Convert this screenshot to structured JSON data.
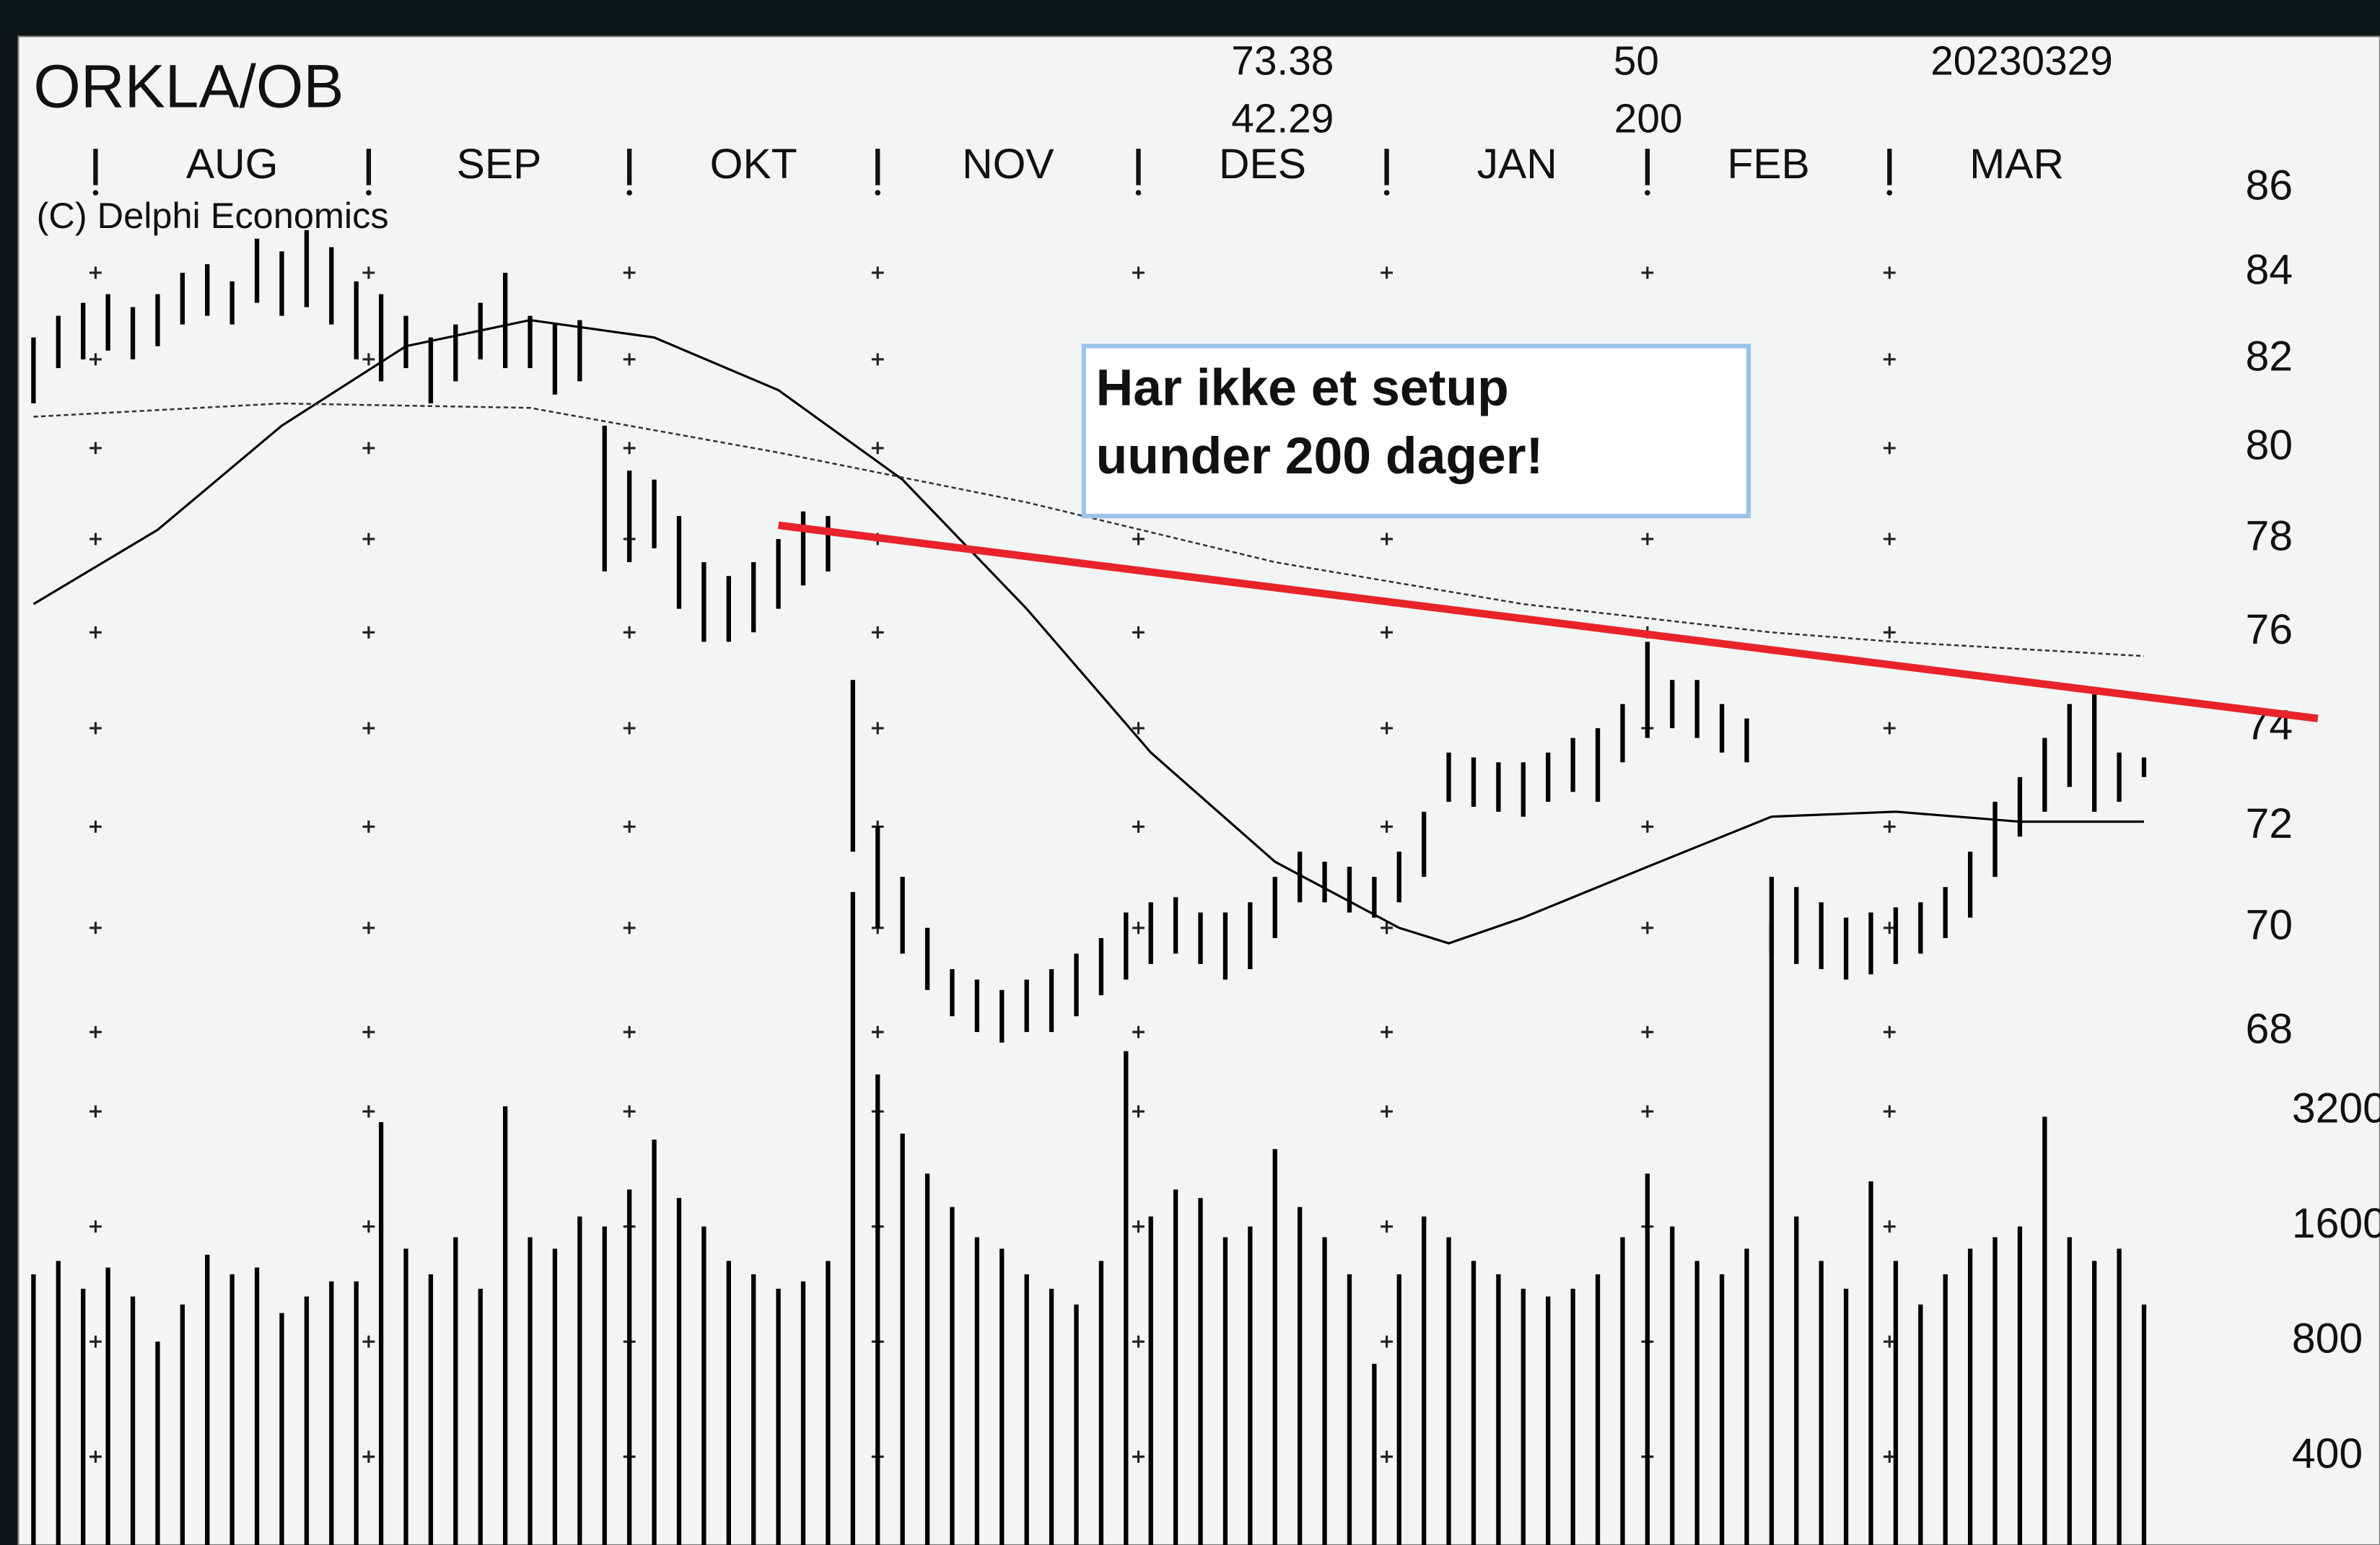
{
  "chart_data": {
    "type": "stock",
    "title": "ORKLA/OB",
    "copyright": "(C) Delphi Economics",
    "stats": [
      73.38,
      42.29
    ],
    "ma_periods": [
      50,
      200
    ],
    "date": "20230329",
    "annotation": [
      "Har ikke et setup",
      "uunder 200 dager!"
    ],
    "xlim": [
      0,
      189
    ],
    "xticks": [
      {
        "value": 5,
        "label": "AUG"
      },
      {
        "value": 27,
        "label": "SEP"
      },
      {
        "value": 48,
        "label": "OKT"
      },
      {
        "value": 68,
        "label": "NOV"
      },
      {
        "value": 89,
        "label": "DES"
      },
      {
        "value": 109,
        "label": "JAN"
      },
      {
        "value": 130,
        "label": "FEB"
      },
      {
        "value": 149.5,
        "label": "MAR"
      }
    ],
    "x": [
      0,
      2,
      4,
      6,
      8,
      10,
      12,
      14,
      16,
      18,
      20,
      22,
      24,
      26,
      28,
      30,
      32,
      34,
      36,
      38,
      40,
      42,
      44,
      46,
      48,
      50,
      52,
      54,
      56,
      58,
      60,
      62,
      64,
      66,
      68,
      70,
      72,
      74,
      76,
      78,
      80,
      82,
      84,
      86,
      88,
      90,
      92,
      94,
      96,
      98,
      100,
      102,
      104,
      106,
      108,
      110,
      112,
      114,
      116,
      118,
      120,
      122,
      124,
      126,
      128,
      130,
      132,
      134,
      136,
      138,
      140,
      142,
      144,
      146,
      148,
      150,
      152,
      154,
      156,
      158,
      160,
      162,
      164,
      166,
      168,
      170
    ],
    "high": [
      82.5,
      83,
      83.3,
      83.5,
      83.2,
      83.5,
      84,
      84.2,
      83.8,
      84.8,
      84.5,
      85,
      84.6,
      83.8,
      83.5,
      83,
      82.5,
      82.8,
      83.3,
      84,
      83,
      82.8,
      82.9,
      80.5,
      79.5,
      79.3,
      78.5,
      77.5,
      77.2,
      77.5,
      78,
      78.6,
      78.5,
      75,
      72,
      71,
      70,
      69.2,
      69,
      68.8,
      69,
      69.2,
      69.5,
      69.8,
      70.3,
      70.5,
      70.6,
      70.3,
      70.3,
      70.5,
      71,
      71.5,
      71.3,
      71.2,
      71,
      71.5,
      72.3,
      73.5,
      73.4,
      73.3,
      73.3,
      73.5,
      73.8,
      74,
      74.5,
      75.8,
      75,
      75,
      74.5,
      74.2,
      71,
      70.8,
      70.5,
      70.2,
      70.3,
      70.4,
      70.5,
      70.8,
      71.5,
      72.5,
      73,
      73.8,
      74.5,
      74.7,
      73.5,
      73.4
    ],
    "low": [
      81,
      81.8,
      82,
      82.2,
      82,
      82.3,
      82.8,
      83,
      82.8,
      83.3,
      83,
      83.2,
      82.8,
      82,
      81.5,
      81.8,
      81,
      81.5,
      82,
      81.8,
      81.8,
      81.2,
      81.5,
      77.3,
      77.5,
      77.8,
      76.5,
      75.8,
      75.8,
      76,
      76.5,
      77,
      77.3,
      71.5,
      70,
      69.5,
      68.8,
      68.3,
      68,
      67.8,
      68,
      68,
      68.3,
      68.7,
      69,
      69.3,
      69.5,
      69.3,
      69,
      69.2,
      69.8,
      70.5,
      70.5,
      70.3,
      70.2,
      70.5,
      71,
      72.5,
      72.4,
      72.3,
      72.2,
      72.5,
      72.7,
      72.5,
      73.3,
      73.8,
      74,
      73.8,
      73.5,
      73.3,
      69.5,
      69.3,
      69.2,
      69,
      69.1,
      69.3,
      69.5,
      69.8,
      70.2,
      71,
      71.8,
      72.3,
      72.8,
      72.3,
      72.5,
      73
    ],
    "color": "#000000",
    "ylim": [
      68,
      86
    ],
    "yticks": [
      68,
      70,
      72,
      74,
      76,
      78,
      80,
      82,
      84,
      86
    ],
    "log_y": true,
    "moving_averages": [
      {
        "x": [
          0,
          10,
          20,
          30,
          40,
          50,
          60,
          70,
          80,
          90,
          100,
          110,
          114,
          120,
          130,
          140,
          150,
          160,
          170
        ],
        "values": [
          76.6,
          78.2,
          80.5,
          82.3,
          82.9,
          82.5,
          81.3,
          79.3,
          76.5,
          73.5,
          71.3,
          70,
          69.7,
          70.2,
          71.2,
          72.2,
          72.3,
          72.1,
          72.1
        ],
        "color": "#000000",
        "dashed": false
      },
      {
        "x": [
          0,
          20,
          40,
          60,
          80,
          100,
          120,
          140,
          150,
          170
        ],
        "values": [
          80.7,
          81,
          80.9,
          79.9,
          78.8,
          77.5,
          76.6,
          76,
          75.8,
          75.5
        ],
        "color": "#333333",
        "dashed": true
      }
    ],
    "trendline": {
      "x": [
        60,
        184
      ],
      "values": [
        78.3,
        74.2
      ],
      "color": "#e8232a"
    },
    "volume": {
      "values": [
        1200,
        1300,
        1100,
        1250,
        1050,
        800,
        1000,
        1350,
        1200,
        1250,
        950,
        1050,
        1150,
        1150,
        3000,
        1400,
        1200,
        1500,
        1100,
        3300,
        1500,
        1400,
        1700,
        1600,
        2000,
        2700,
        1900,
        1600,
        1300,
        1200,
        1100,
        1150,
        1300,
        12000,
        4000,
        2800,
        2200,
        1800,
        1500,
        1400,
        1200,
        1100,
        1000,
        1300,
        4600,
        1700,
        2000,
        1900,
        1500,
        1600,
        2550,
        1800,
        1500,
        1200,
        700,
        1200,
        1700,
        1500,
        1300,
        1200,
        1100,
        1050,
        1100,
        1200,
        1500,
        2200,
        1600,
        1300,
        1200,
        1400,
        10000,
        1700,
        1300,
        1100,
        2100,
        1300,
        1000,
        1200,
        1400,
        1500,
        1600,
        3100,
        1500,
        1300,
        1400,
        1000
      ],
      "ylim": [
        235,
        4300
      ],
      "yticks": [
        400,
        800,
        1600,
        3200
      ],
      "log": true
    }
  }
}
